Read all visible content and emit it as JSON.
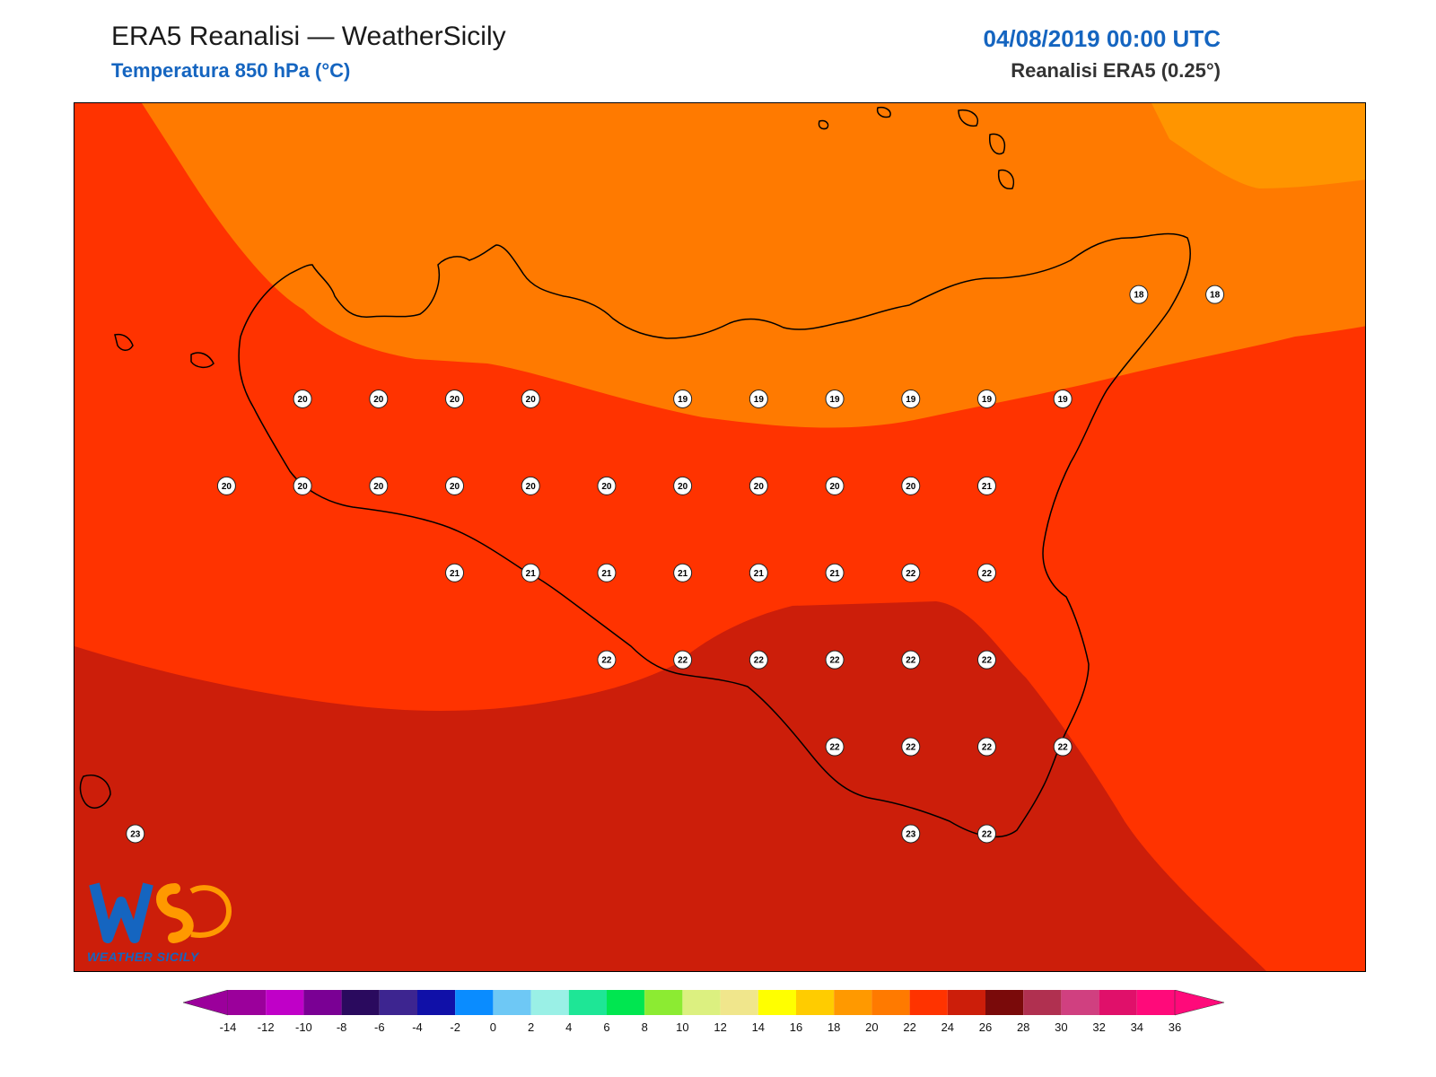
{
  "header": {
    "title": "ERA5 Reanalisi — WeatherSicily",
    "subtitle": "Temperatura 850 hPa (°C)",
    "datetime": "04/08/2019 00:00 UTC",
    "source": "Reanalisi ERA5 (0.25°)"
  },
  "logo": {
    "text": "WEATHER SICILY",
    "letters": "WS"
  },
  "colorbar": {
    "ticks": [
      "-14",
      "-12",
      "-10",
      "-8",
      "-6",
      "-4",
      "-2",
      "0",
      "2",
      "4",
      "6",
      "8",
      "10",
      "12",
      "14",
      "16",
      "18",
      "20",
      "22",
      "24",
      "26",
      "28",
      "30",
      "32",
      "34",
      "36"
    ],
    "colors": [
      "#9b009b",
      "#c000c8",
      "#7a0094",
      "#2a0a5e",
      "#3d2590",
      "#1010a8",
      "#0a8cff",
      "#6ec8f5",
      "#9af0e6",
      "#1ee696",
      "#00e650",
      "#8ceb32",
      "#dcf080",
      "#f0e68c",
      "#ffff00",
      "#ffcc00",
      "#ff9900",
      "#ff7a00",
      "#ff3300",
      "#cc1e0a",
      "#7a0a0a",
      "#b03050",
      "#d04080",
      "#e0106a",
      "#ff0a7a"
    ],
    "min_color": "#9b009b",
    "max_color": "#ff0a7a"
  },
  "field_colors": {
    "t16_18": "#ff9500",
    "t18_20": "#ff7a00",
    "t20_22": "#ff3300",
    "t22_24": "#cc1e0a"
  },
  "stations": [
    {
      "label": "18",
      "lon": 15.25,
      "lat": 38.2
    },
    {
      "label": "18",
      "lon": 15.5,
      "lat": 38.2
    },
    {
      "label": "20",
      "lon": 12.5,
      "lat": 37.9
    },
    {
      "label": "20",
      "lon": 12.75,
      "lat": 37.9
    },
    {
      "label": "20",
      "lon": 13.0,
      "lat": 37.9
    },
    {
      "label": "20",
      "lon": 13.25,
      "lat": 37.9
    },
    {
      "label": "19",
      "lon": 13.75,
      "lat": 37.9
    },
    {
      "label": "19",
      "lon": 14.0,
      "lat": 37.9
    },
    {
      "label": "19",
      "lon": 14.25,
      "lat": 37.9
    },
    {
      "label": "19",
      "lon": 14.5,
      "lat": 37.9
    },
    {
      "label": "19",
      "lon": 14.75,
      "lat": 37.9
    },
    {
      "label": "19",
      "lon": 15.0,
      "lat": 37.9
    },
    {
      "label": "20",
      "lon": 12.25,
      "lat": 37.65
    },
    {
      "label": "20",
      "lon": 12.5,
      "lat": 37.65
    },
    {
      "label": "20",
      "lon": 12.75,
      "lat": 37.65
    },
    {
      "label": "20",
      "lon": 13.0,
      "lat": 37.65
    },
    {
      "label": "20",
      "lon": 13.25,
      "lat": 37.65
    },
    {
      "label": "20",
      "lon": 13.5,
      "lat": 37.65
    },
    {
      "label": "20",
      "lon": 13.75,
      "lat": 37.65
    },
    {
      "label": "20",
      "lon": 14.0,
      "lat": 37.65
    },
    {
      "label": "20",
      "lon": 14.25,
      "lat": 37.65
    },
    {
      "label": "20",
      "lon": 14.5,
      "lat": 37.65
    },
    {
      "label": "21",
      "lon": 14.75,
      "lat": 37.65
    },
    {
      "label": "21",
      "lon": 13.0,
      "lat": 37.4
    },
    {
      "label": "21",
      "lon": 13.25,
      "lat": 37.4
    },
    {
      "label": "21",
      "lon": 13.5,
      "lat": 37.4
    },
    {
      "label": "21",
      "lon": 13.75,
      "lat": 37.4
    },
    {
      "label": "21",
      "lon": 14.0,
      "lat": 37.4
    },
    {
      "label": "21",
      "lon": 14.25,
      "lat": 37.4
    },
    {
      "label": "22",
      "lon": 14.5,
      "lat": 37.4
    },
    {
      "label": "22",
      "lon": 14.75,
      "lat": 37.4
    },
    {
      "label": "22",
      "lon": 13.5,
      "lat": 37.15
    },
    {
      "label": "22",
      "lon": 13.75,
      "lat": 37.15
    },
    {
      "label": "22",
      "lon": 14.0,
      "lat": 37.15
    },
    {
      "label": "22",
      "lon": 14.25,
      "lat": 37.15
    },
    {
      "label": "22",
      "lon": 14.5,
      "lat": 37.15
    },
    {
      "label": "22",
      "lon": 14.75,
      "lat": 37.15
    },
    {
      "label": "22",
      "lon": 14.25,
      "lat": 36.9
    },
    {
      "label": "22",
      "lon": 14.5,
      "lat": 36.9
    },
    {
      "label": "22",
      "lon": 14.75,
      "lat": 36.9
    },
    {
      "label": "22",
      "lon": 15.0,
      "lat": 36.9
    },
    {
      "label": "23",
      "lon": 14.5,
      "lat": 36.65
    },
    {
      "label": "22",
      "lon": 14.75,
      "lat": 36.65
    },
    {
      "label": "23",
      "lon": 11.95,
      "lat": 36.65
    }
  ]
}
